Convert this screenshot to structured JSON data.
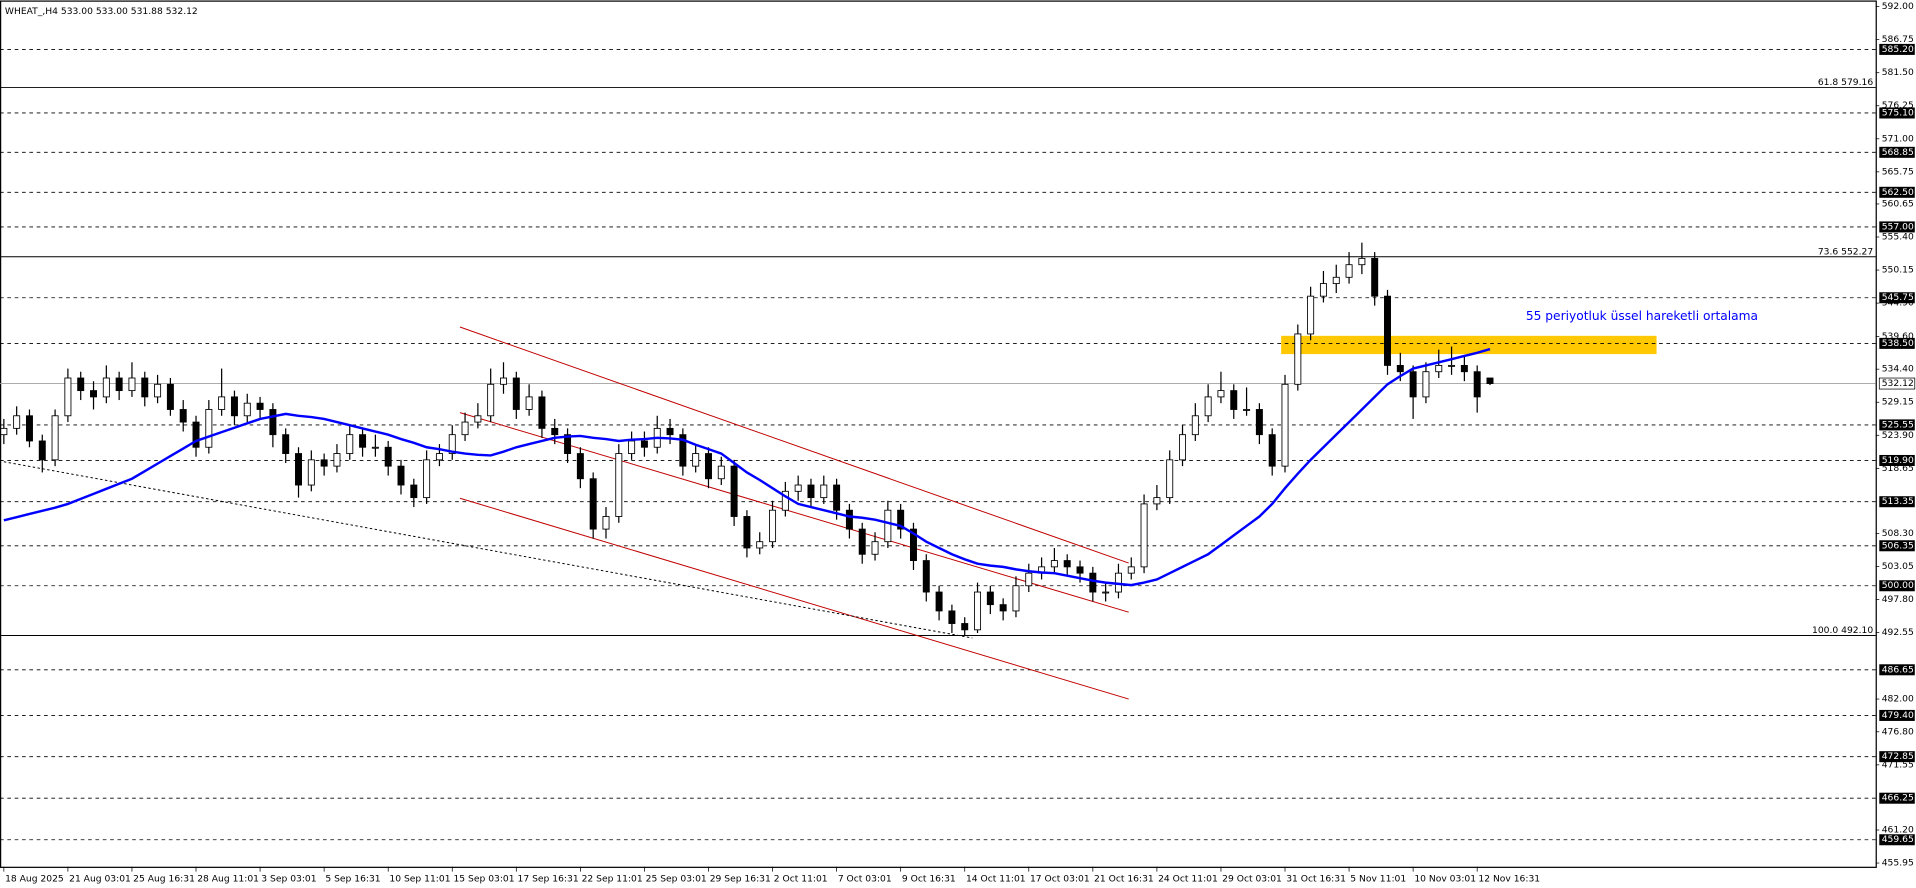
{
  "chart_data": {
    "type": "candlestick",
    "title": "WHEAT_,H4  533.00 533.00 531.88 532.12",
    "up_color": "#ffffff",
    "down_color": "#000000",
    "open": [
      524,
      525,
      527,
      523,
      520,
      527,
      533,
      531,
      530,
      533,
      531,
      533,
      530,
      532,
      528,
      526,
      522,
      528,
      530,
      527,
      529,
      528,
      524,
      521,
      516,
      520,
      519,
      521,
      524,
      522,
      522,
      519,
      516,
      514,
      520,
      521,
      524,
      526,
      527,
      532,
      533,
      528,
      530,
      525,
      524,
      521,
      517,
      509,
      511,
      521,
      523,
      522,
      525,
      524,
      519,
      521,
      517,
      519,
      511,
      506,
      507,
      512,
      515,
      516,
      514,
      516,
      512,
      509,
      505,
      507,
      512,
      509,
      504,
      499,
      496,
      494,
      493,
      499,
      497,
      496,
      500,
      502,
      503,
      504,
      503,
      502,
      499,
      499,
      502,
      503,
      513,
      514,
      520,
      524,
      527,
      530,
      531,
      528,
      528,
      524,
      519,
      532,
      540,
      546,
      548,
      549,
      551,
      552,
      546,
      535,
      534,
      530,
      534,
      535,
      535,
      534,
      533.0
    ],
    "high": [
      526.5,
      528.5,
      528,
      524,
      528,
      534.5,
      534,
      532.5,
      535,
      534,
      535.5,
      534,
      533.5,
      533,
      529.5,
      527,
      529.5,
      534.5,
      531,
      530.5,
      530,
      529,
      525,
      522,
      521.5,
      521,
      522.5,
      525.5,
      525,
      524,
      523,
      520,
      517,
      521.5,
      522.5,
      525.5,
      527.5,
      529,
      534.5,
      535.5,
      534,
      532,
      531,
      526.5,
      525,
      522,
      518,
      512.5,
      522.5,
      524.5,
      524.5,
      527,
      526.5,
      525,
      522.5,
      522,
      520.5,
      520,
      512,
      508.5,
      513.5,
      516.5,
      517.5,
      517,
      517.5,
      517,
      513,
      510,
      508.5,
      513.5,
      513,
      510,
      505,
      500,
      497,
      495,
      500.5,
      500,
      498,
      501.5,
      503.5,
      504.5,
      506,
      505,
      504,
      503,
      500.5,
      503.5,
      504.5,
      514.5,
      516,
      521.5,
      525.5,
      529,
      532,
      534,
      532,
      531.5,
      529,
      525,
      533.5,
      541.5,
      547.5,
      550,
      551,
      553,
      554.5,
      553,
      547,
      537,
      535,
      535.5,
      537.5,
      538,
      536.5,
      535,
      533.0
    ],
    "low": [
      522.5,
      524,
      522,
      518,
      519,
      526,
      529.5,
      528,
      529,
      529.5,
      530,
      528.5,
      529,
      527,
      524.5,
      520.5,
      521,
      527,
      525.5,
      526,
      526.5,
      522,
      519.5,
      514,
      515,
      517.5,
      518,
      520,
      520.5,
      520.5,
      517.5,
      514.5,
      512.5,
      513,
      519,
      520,
      523,
      525,
      526,
      530.5,
      526.5,
      527,
      523.5,
      522.5,
      519.5,
      515.5,
      507.5,
      507.5,
      510,
      520,
      520.5,
      521,
      522.5,
      517.5,
      518,
      515.5,
      516,
      509.5,
      504.5,
      505,
      506,
      511,
      513.5,
      512.5,
      513,
      510.5,
      507.5,
      503.5,
      504,
      506,
      507.5,
      502.5,
      497.5,
      494.5,
      492.5,
      492,
      492.5,
      495.5,
      494.5,
      495,
      499,
      501,
      502,
      501.5,
      500.5,
      497.5,
      497.5,
      498,
      501,
      502,
      512,
      513,
      519,
      523,
      526,
      529,
      526.5,
      527,
      522.5,
      517.5,
      518,
      531,
      539,
      545,
      546.5,
      548,
      549.5,
      544.5,
      533.5,
      532.5,
      526.5,
      529,
      533,
      533.5,
      532.5,
      527.5,
      531.88
    ],
    "close": [
      525,
      527,
      523,
      520,
      527,
      533,
      531,
      530,
      533,
      531,
      533,
      530,
      532,
      528,
      526,
      522,
      528,
      530,
      527,
      529,
      528,
      524,
      521,
      516,
      520,
      519,
      521,
      524,
      522,
      522,
      519,
      516,
      514,
      520,
      521,
      524,
      526,
      527,
      532,
      533,
      528,
      530,
      525,
      524,
      521,
      517,
      509,
      511,
      521,
      523,
      522,
      525,
      524,
      519,
      521,
      517,
      519,
      511,
      506,
      507,
      512,
      515,
      516,
      514,
      516,
      512,
      509,
      505,
      507,
      512,
      509,
      504,
      499,
      496,
      494,
      493,
      499,
      497,
      496,
      500,
      502,
      503,
      504,
      503,
      502,
      499,
      499,
      502,
      503,
      513,
      514,
      520,
      524,
      527,
      530,
      531,
      528,
      528,
      524,
      519,
      532,
      540,
      546,
      548,
      549,
      551,
      552,
      546,
      535,
      534,
      530,
      534,
      535,
      535,
      534,
      530,
      532.12
    ],
    "ma": {
      "color": "#0000ff",
      "values": [
        510.4,
        510.9,
        511.4,
        511.9,
        512.4,
        513,
        513.8,
        514.6,
        515.4,
        516.2,
        517,
        518.2,
        519.4,
        520.6,
        521.8,
        523,
        523.7,
        524.4,
        525.1,
        525.8,
        526.5,
        526.9,
        527.3,
        527,
        526.8,
        526.5,
        526,
        525.5,
        525,
        524.5,
        524,
        523.3,
        522.7,
        522,
        521.7,
        521.3,
        521,
        520.8,
        520.7,
        521.3,
        522,
        522.5,
        523,
        523.5,
        523.7,
        523.8,
        523.5,
        523.3,
        523,
        523.2,
        523.3,
        523.5,
        523.4,
        523.2,
        522.4,
        521.7,
        521,
        519.5,
        518,
        516.8,
        515.5,
        514.2,
        513,
        512.5,
        512,
        511.5,
        511,
        510.8,
        510.5,
        510,
        509.5,
        508.3,
        507,
        506,
        505,
        504.2,
        503.5,
        503.2,
        503,
        502.6,
        502.3,
        502.1,
        502,
        501.6,
        501.2,
        500.8,
        500.5,
        500.3,
        500.1,
        500.5,
        501,
        502,
        503,
        504,
        505,
        506.5,
        508,
        509.5,
        511,
        513,
        515.5,
        517.8,
        520,
        522,
        524,
        526,
        528,
        530,
        532,
        533.3,
        534.5,
        535,
        535.5,
        536,
        536.5,
        537,
        537.6
      ]
    },
    "xlim": [
      -0.3,
      146.1
    ],
    "ylim": [
      455.95,
      592
    ],
    "xticks": [
      {
        "value": 0,
        "label": "18 Aug 2025"
      },
      {
        "value": 5,
        "label": "21 Aug 03:01"
      },
      {
        "value": 10,
        "label": "25 Aug 16:31"
      },
      {
        "value": 15,
        "label": "28 Aug 11:01"
      },
      {
        "value": 20,
        "label": "3 Sep 03:01"
      },
      {
        "value": 25,
        "label": "5 Sep 16:31"
      },
      {
        "value": 30,
        "label": "10 Sep 11:01"
      },
      {
        "value": 35,
        "label": "15 Sep 03:01"
      },
      {
        "value": 40,
        "label": "17 Sep 16:31"
      },
      {
        "value": 45,
        "label": "22 Sep 11:01"
      },
      {
        "value": 50,
        "label": "25 Sep 03:01"
      },
      {
        "value": 55,
        "label": "29 Sep 16:31"
      },
      {
        "value": 60,
        "label": "2 Oct 11:01"
      },
      {
        "value": 65,
        "label": "7 Oct 03:01"
      },
      {
        "value": 70,
        "label": "9 Oct 16:31"
      },
      {
        "value": 75,
        "label": "14 Oct 11:01"
      },
      {
        "value": 80,
        "label": "17 Oct 03:01"
      },
      {
        "value": 85,
        "label": "21 Oct 16:31"
      },
      {
        "value": 90,
        "label": "24 Oct 11:01"
      },
      {
        "value": 95,
        "label": "29 Oct 03:01"
      },
      {
        "value": 100,
        "label": "31 Oct 16:31"
      },
      {
        "value": 105,
        "label": "5 Nov 11:01"
      },
      {
        "value": 110,
        "label": "10 Nov 03:01"
      },
      {
        "value": 115,
        "label": "12 Nov 16:31"
      }
    ],
    "yticks": [
      {
        "value": 592,
        "label": "592.00"
      },
      {
        "value": 586.75,
        "label": "586.75"
      },
      {
        "value": 581.5,
        "label": "581.50"
      },
      {
        "value": 576.25,
        "label": "576.25"
      },
      {
        "value": 571,
        "label": "571.00"
      },
      {
        "value": 565.75,
        "label": "565.75"
      },
      {
        "value": 560.65,
        "label": "560.65"
      },
      {
        "value": 555.4,
        "label": "555.40"
      },
      {
        "value": 550.15,
        "label": "550.15"
      },
      {
        "value": 544.9,
        "label": "544.90"
      },
      {
        "value": 539.6,
        "label": "539.60"
      },
      {
        "value": 534.4,
        "label": "534.40"
      },
      {
        "value": 529.15,
        "label": "529.15"
      },
      {
        "value": 523.9,
        "label": "523.90"
      },
      {
        "value": 518.65,
        "label": "518.65"
      },
      {
        "value": 508.3,
        "label": "508.30"
      },
      {
        "value": 503.05,
        "label": "503.05"
      },
      {
        "value": 497.8,
        "label": "497.80"
      },
      {
        "value": 492.55,
        "label": "492.55"
      },
      {
        "value": 482,
        "label": "482.00"
      },
      {
        "value": 476.8,
        "label": "476.80"
      },
      {
        "value": 471.55,
        "label": "471.55"
      },
      {
        "value": 461.2,
        "label": "461.20"
      },
      {
        "value": 455.95,
        "label": "455.95"
      }
    ],
    "levels": [
      {
        "value": 585.2,
        "label": "585.20"
      },
      {
        "value": 575.1,
        "label": "575.10"
      },
      {
        "value": 568.85,
        "label": "568.85"
      },
      {
        "value": 562.5,
        "label": "562.50"
      },
      {
        "value": 557,
        "label": "557.00"
      },
      {
        "value": 545.75,
        "label": "545.75"
      },
      {
        "value": 538.5,
        "label": "538.50"
      },
      {
        "value": 525.55,
        "label": "525.55"
      },
      {
        "value": 519.9,
        "label": "519.90"
      },
      {
        "value": 513.35,
        "label": "513.35"
      },
      {
        "value": 506.35,
        "label": "506.35"
      },
      {
        "value": 500,
        "label": "500.00"
      },
      {
        "value": 486.65,
        "label": "486.65"
      },
      {
        "value": 479.4,
        "label": "479.40"
      },
      {
        "value": 472.85,
        "label": "472.85"
      },
      {
        "value": 466.25,
        "label": "466.25"
      },
      {
        "value": 459.65,
        "label": "459.65"
      }
    ],
    "current_price": {
      "value": 532.12,
      "label": "532.12"
    },
    "fibo": [
      {
        "value": 579.16,
        "label": "61.8 579.16"
      },
      {
        "value": 552.27,
        "label": "73.6 552.27"
      },
      {
        "value": 492.1,
        "label": "100.0 492.10"
      }
    ],
    "zone": {
      "color": "#ffc800",
      "x": [
        99.7,
        129
      ],
      "y": [
        536.8,
        539.7
      ]
    },
    "lines": [
      {
        "color": "#c00000",
        "dashed": false,
        "x": [
          35.6,
          87.8
        ],
        "y": [
          541.1,
          503.6
        ]
      },
      {
        "color": "#c00000",
        "dashed": false,
        "x": [
          35.6,
          87.8
        ],
        "y": [
          527.5,
          495.8
        ]
      },
      {
        "color": "#c00000",
        "dashed": false,
        "x": [
          35.6,
          87.8
        ],
        "y": [
          513.9,
          482.0
        ]
      },
      {
        "color": "#000000",
        "dashed": true,
        "x": [
          0,
          75.6
        ],
        "y": [
          519.7,
          491.7
        ]
      }
    ],
    "annotation": {
      "text": "55 periyotluk üssel hareketli ortalama",
      "color": "#0000ff",
      "x": 118.8,
      "y": 542.8
    }
  }
}
